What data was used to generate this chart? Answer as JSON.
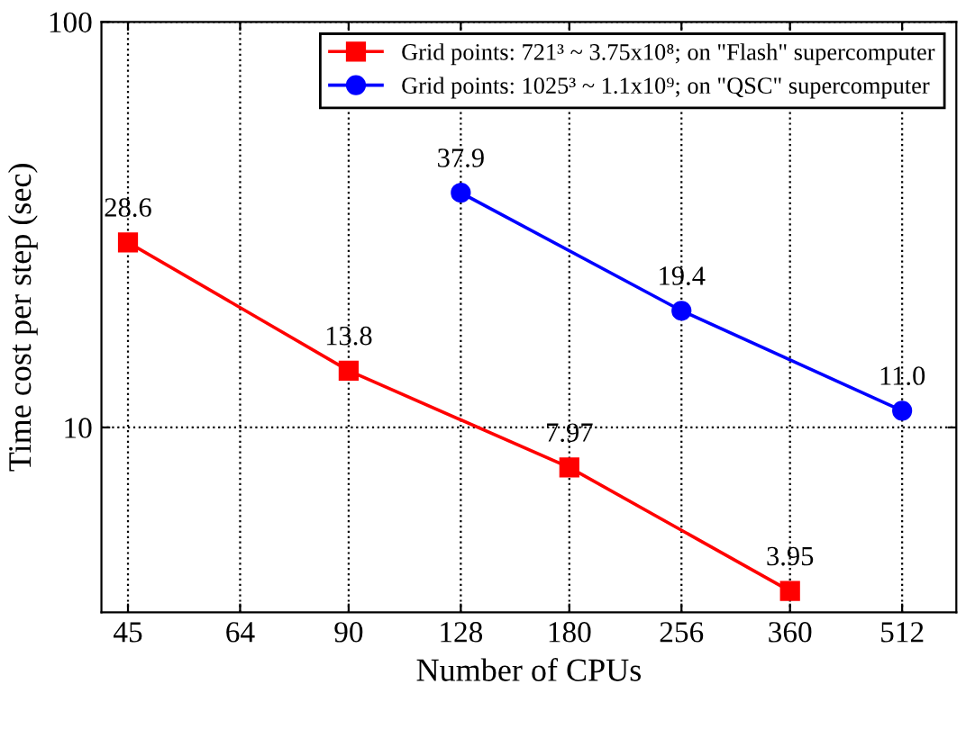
{
  "chart_data": {
    "type": "line",
    "xlabel": "Number of CPUs",
    "ylabel": "Time cost per step (sec)",
    "log": "xy",
    "xlim": [
      41.4,
      607
    ],
    "ylim": [
      3.5,
      100
    ],
    "xticks": [
      45,
      64,
      90,
      128,
      180,
      256,
      360,
      512
    ],
    "yticks": [
      10,
      100
    ],
    "grid": true,
    "legend": "top right",
    "data_labels": true,
    "line_style": "solid",
    "series": [
      {
        "name": "Grid points: 721³ ~ 3.75x10⁸; on \"Flash\" supercomputer",
        "color": "#ff0000",
        "marker": "square",
        "x": [
          45,
          90,
          180,
          360
        ],
        "values": [
          28.6,
          13.8,
          7.97,
          3.95
        ],
        "value_labels": [
          "28.6",
          "13.8",
          "7.97",
          "3.95"
        ]
      },
      {
        "name": "Grid points: 1025³ ~ 1.1x10⁹; on \"QSC\" supercomputer",
        "color": "#0000ff",
        "marker": "circle",
        "x": [
          128,
          256,
          512
        ],
        "values": [
          37.9,
          19.4,
          11.0
        ],
        "value_labels": [
          "37.9",
          "19.4",
          "11.0"
        ]
      }
    ]
  }
}
